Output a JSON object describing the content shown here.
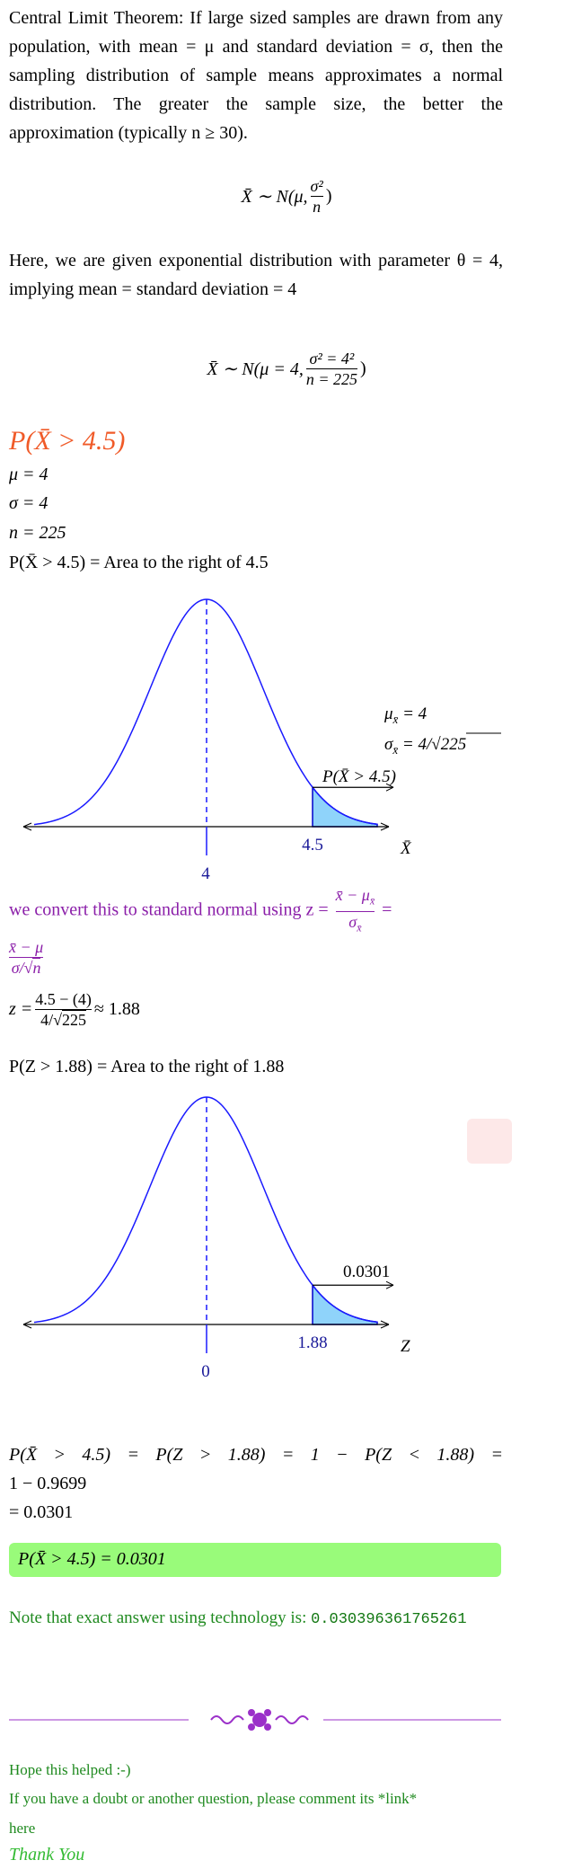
{
  "clt": {
    "paragraph": "Central Limit Theorem: If large sized samples are drawn from any population, with mean = μ and standard deviation = σ, then the sampling distribution of sample means approximates a normal distribution. The greater the sample size, the better the approximation (typically n ≥ 30).",
    "formula": {
      "lhs": "X̄ ∼ N(μ,",
      "num": "σ²",
      "den": "n",
      "close": ")"
    }
  },
  "given": {
    "paragraph": "Here, we are given exponential distribution with parameter θ = 4, implying mean = standard deviation = 4",
    "formula": {
      "lhs": "X̄ ∼ N(μ = 4,",
      "num": "σ² = 4²",
      "den": "n = 225",
      "close": ")"
    }
  },
  "heading": "P(X̄ > 4.5)",
  "params": [
    "μ = 4",
    "σ = 4",
    "n = 225",
    "P(X̄ > 4.5) = Area to the right of 4.5"
  ],
  "figure1": {
    "center_label": "4",
    "cut_label": "4.5",
    "axis_label": "X̄",
    "mean_label": {
      "symbol": "μ",
      "sub": "x̄",
      "rest": " = 4"
    },
    "sd_label": {
      "symbol": "σ",
      "sub": "x̄",
      "rest": " = 4/√",
      "rad": "225"
    },
    "area_label": "P(X̄ > 4.5)"
  },
  "convert": {
    "text": "we convert this to standard normal using z =",
    "frac1": {
      "num": "x̄ − μ",
      "num_sub": "x̄",
      "den": "σ",
      "den_sub": "x̄"
    },
    "equals": "=",
    "frac2": {
      "num": "x̄ − μ",
      "den": "σ/√",
      "den_rad": "n"
    }
  },
  "zcalc": {
    "lhs": "z =",
    "num": "4.5 − (4)",
    "den": "4/√",
    "den_rad": "225",
    "rhs": "≈ 1.88"
  },
  "zarea": "P(Z > 1.88) = Area to the right of 1.88",
  "figure2": {
    "center_label": "0",
    "cut_label": "1.88",
    "axis_label": "Z",
    "area_label": "0.0301"
  },
  "conclusion": {
    "line1": "P(X̄ > 4.5) = P(Z > 1.88) = 1 − P(Z < 1.88) =",
    "line2": "1 − 0.9699",
    "line3": "= 0.0301"
  },
  "answer": "P(X̄ > 4.5) = 0.0301",
  "note": {
    "text": "Note that exact answer using technology is:",
    "value": "0.030396361765261"
  },
  "footer": {
    "hope": "Hope this helped :-)",
    "doubt": "If you have a doubt or another question, please comment its *link*",
    "here": "here",
    "thanks": "Thank You"
  }
}
